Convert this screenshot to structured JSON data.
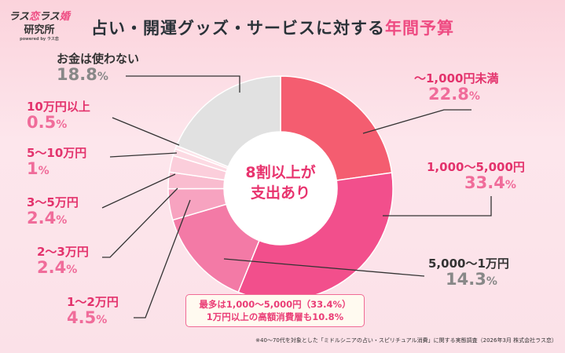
{
  "logo": {
    "line1a": "ラス",
    "line1b": "恋",
    "line1c": "ラス",
    "line1d": "婚",
    "line2": "研究所",
    "line3": "powered by ラス恋"
  },
  "title": {
    "main": "占い・開運グッズ・サービスに対する",
    "highlight": "年間予算"
  },
  "center_text": {
    "line1": "8割以上が",
    "line2": "支出あり"
  },
  "callout": {
    "line1": "最多は1,000～5,000円（33.4%）",
    "line2": "1万円以上の高額消費層も10.8%"
  },
  "footnote": "※40～70代を対象とした「ミドルシニアの占い・スピリチュアル消費」に関する実態調査（2026年3月 株式会社ラス恋）",
  "chart_data": {
    "type": "pie",
    "donut": true,
    "start": "top, clockwise",
    "unit": "%",
    "slices": [
      {
        "label": "～1,000円未満",
        "value": 22.8,
        "color": "#f45d70"
      },
      {
        "label": "1,000～5,000円",
        "value": 33.4,
        "color": "#f24f8c"
      },
      {
        "label": "5,000～1万円",
        "value": 14.3,
        "color": "#f37aa6"
      },
      {
        "label": "1～2万円",
        "value": 4.5,
        "color": "#f7a3c0"
      },
      {
        "label": "2～3万円",
        "value": 2.4,
        "color": "#f9bccf"
      },
      {
        "label": "3～5万円",
        "value": 2.4,
        "color": "#fbcedb"
      },
      {
        "label": "5～10万円",
        "value": 1.0,
        "color": "#fcdae3"
      },
      {
        "label": "10万円以上",
        "value": 0.5,
        "color": "#fde5eb"
      },
      {
        "label": "お金は使わない",
        "value": 18.8,
        "color": "#e1e1e1"
      }
    ]
  }
}
